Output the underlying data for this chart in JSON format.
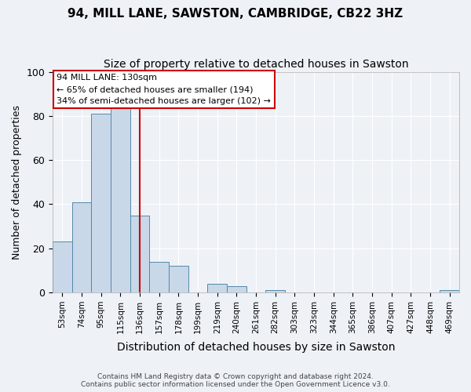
{
  "title": "94, MILL LANE, SAWSTON, CAMBRIDGE, CB22 3HZ",
  "subtitle": "Size of property relative to detached houses in Sawston",
  "xlabel": "Distribution of detached houses by size in Sawston",
  "ylabel": "Number of detached properties",
  "footer_line1": "Contains HM Land Registry data © Crown copyright and database right 2024.",
  "footer_line2": "Contains public sector information licensed under the Open Government Licence v3.0.",
  "bin_labels": [
    "53sqm",
    "74sqm",
    "95sqm",
    "115sqm",
    "136sqm",
    "157sqm",
    "178sqm",
    "199sqm",
    "219sqm",
    "240sqm",
    "261sqm",
    "282sqm",
    "303sqm",
    "323sqm",
    "344sqm",
    "365sqm",
    "386sqm",
    "407sqm",
    "427sqm",
    "448sqm",
    "469sqm"
  ],
  "bar_heights": [
    23,
    41,
    81,
    84,
    35,
    14,
    12,
    0,
    4,
    3,
    0,
    1,
    0,
    0,
    0,
    0,
    0,
    0,
    0,
    0,
    1
  ],
  "bar_color": "#c8d8e8",
  "bar_edge_color": "#5588aa",
  "vline_x": 4,
  "vline_color": "#cc0000",
  "annotation_text": "94 MILL LANE: 130sqm\n← 65% of detached houses are smaller (194)\n34% of semi-detached houses are larger (102) →",
  "annotation_box_color": "#cc0000",
  "annotation_text_color": "#000000",
  "ylim": [
    0,
    100
  ],
  "yticks": [
    0,
    20,
    40,
    60,
    80,
    100
  ],
  "background_color": "#eef2f7",
  "plot_bg_color": "#eef2f7",
  "grid_color": "#ffffff",
  "title_fontsize": 11,
  "subtitle_fontsize": 10,
  "xlabel_fontsize": 10,
  "ylabel_fontsize": 9
}
